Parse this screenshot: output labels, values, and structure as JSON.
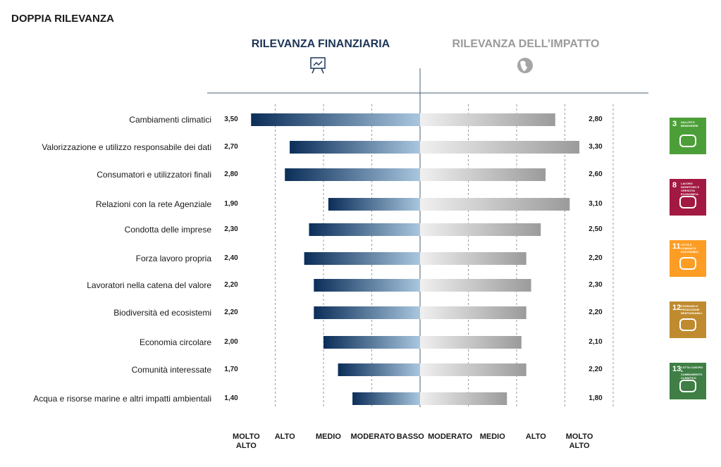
{
  "chart_data": {
    "type": "butterfly",
    "title": "DOPPIA RILEVANZA",
    "categories": [
      "Cambiamenti climatici",
      "Valorizzazione e utilizzo responsabile dei dati",
      "Consumatori e utilizzatori finali",
      "Relazioni con la rete Agenziale",
      "Condotta delle imprese",
      "Forza lavoro propria",
      "Lavoratori nella catena del valore",
      "Biodiversità ed ecosistemi",
      "Economia circolare",
      "Comunità interessate",
      "Acqua e risorse marine e altri impatti ambientali"
    ],
    "xlim": [
      0,
      4
    ],
    "series": [
      {
        "name": "RILEVANZA FINANZIARIA",
        "side": "left",
        "color": [
          "#0b2e59",
          "#a9c6de"
        ],
        "title_color": "#1d3557",
        "values": [
          3.5,
          2.7,
          2.8,
          1.9,
          2.3,
          2.4,
          2.2,
          2.2,
          2.0,
          1.7,
          1.4
        ],
        "value_labels": [
          "3,50",
          "2,70",
          "2,80",
          "1,90",
          "2,30",
          "2,40",
          "2,20",
          "2,20",
          "2,00",
          "1,70",
          "1,40"
        ],
        "grid": [
          1,
          2,
          3
        ],
        "xticks": [
          {
            "value": 3.6,
            "label": "MOLTO ALTO"
          },
          {
            "value": 2.8,
            "label": "ALTO"
          },
          {
            "value": 1.9,
            "label": "MEDIO"
          },
          {
            "value": 1.0,
            "label": "MODERATO"
          },
          {
            "value": 0.2,
            "label": "BASSO"
          }
        ]
      },
      {
        "name": "RILEVANZA DELL’IMPATTO",
        "side": "right",
        "color": [
          "#f0f0f0",
          "#9b9b9b"
        ],
        "title_color": "#9a9a9a",
        "values": [
          2.8,
          3.3,
          2.6,
          3.1,
          2.5,
          2.2,
          2.3,
          2.2,
          2.1,
          2.2,
          1.8
        ],
        "value_labels": [
          "2,80",
          "3,30",
          "2,60",
          "3,10",
          "2,50",
          "2,20",
          "2,30",
          "2,20",
          "2,10",
          "2,20",
          "1,80"
        ],
        "grid": [
          1,
          2,
          3,
          4
        ],
        "xticks": [
          {
            "value": 0.6,
            "label": "MODERATO"
          },
          {
            "value": 1.5,
            "label": "MEDIO"
          },
          {
            "value": 2.4,
            "label": "ALTO"
          },
          {
            "value": 3.3,
            "label": "MOLTO ALTO"
          }
        ]
      }
    ],
    "sdgs": [
      {
        "number": "3",
        "label": "SALUTE E BENESSERE",
        "color": "#4c9f38"
      },
      {
        "number": "8",
        "label": "LAVORO DIGNITOSO E CRESCITA ECONOMICA",
        "color": "#a21942"
      },
      {
        "number": "11",
        "label": "CITTÀ E COMUNITÀ SOSTENIBILI",
        "color": "#fd9d24"
      },
      {
        "number": "12",
        "label": "CONSUMO E PRODUZIONE RESPONSABILI",
        "color": "#bf8b2e"
      },
      {
        "number": "13",
        "label": "LOTTA CONTRO IL CAMBIAMENTO CLIMATICO",
        "color": "#3f7e44"
      }
    ]
  }
}
